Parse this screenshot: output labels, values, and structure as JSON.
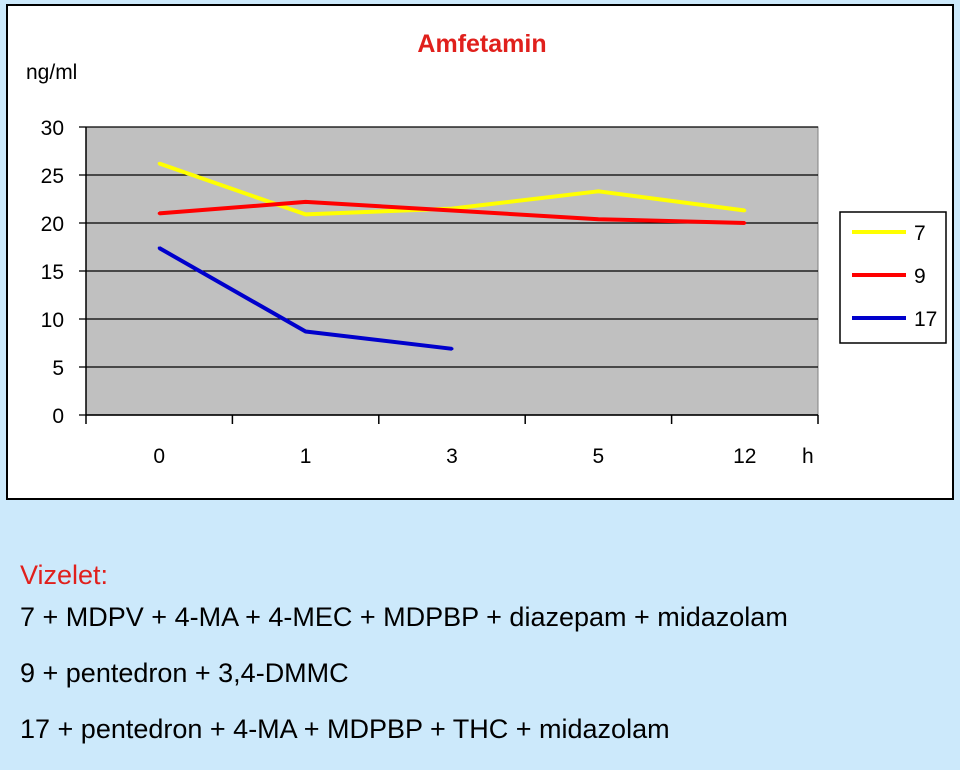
{
  "chart_data": {
    "type": "line",
    "title": "Amfetamin",
    "ylabel": "ng/ml",
    "xlabel": "h",
    "categories": [
      "0",
      "1",
      "3",
      "5",
      "12"
    ],
    "ylim": [
      0,
      30
    ],
    "yticks": [
      "0",
      "5",
      "10",
      "15",
      "20",
      "25",
      "30"
    ],
    "grid": true,
    "legend_position": "right",
    "series": [
      {
        "name": "7",
        "color": "#ffff00",
        "values": [
          26.2,
          20.9,
          21.5,
          23.3,
          21.3
        ]
      },
      {
        "name": "9",
        "color": "#ff0000",
        "values": [
          21.0,
          22.2,
          21.3,
          20.4,
          20.0
        ]
      },
      {
        "name": "17",
        "color": "#0000cc",
        "values": [
          17.4,
          8.7,
          6.9,
          null,
          null
        ]
      }
    ]
  },
  "colors": {
    "page_background": "#cce9fb",
    "plot_background": "#c0c0c0"
  },
  "notes": {
    "heading": "Vizelet:",
    "lines": [
      "7 + MDPV + 4-MA + 4-MEC + MDPBP + diazepam + midazolam",
      "9 + pentedron + 3,4-DMMC",
      "17 + pentedron + 4-MA + MDPBP + THC + midazolam"
    ]
  }
}
